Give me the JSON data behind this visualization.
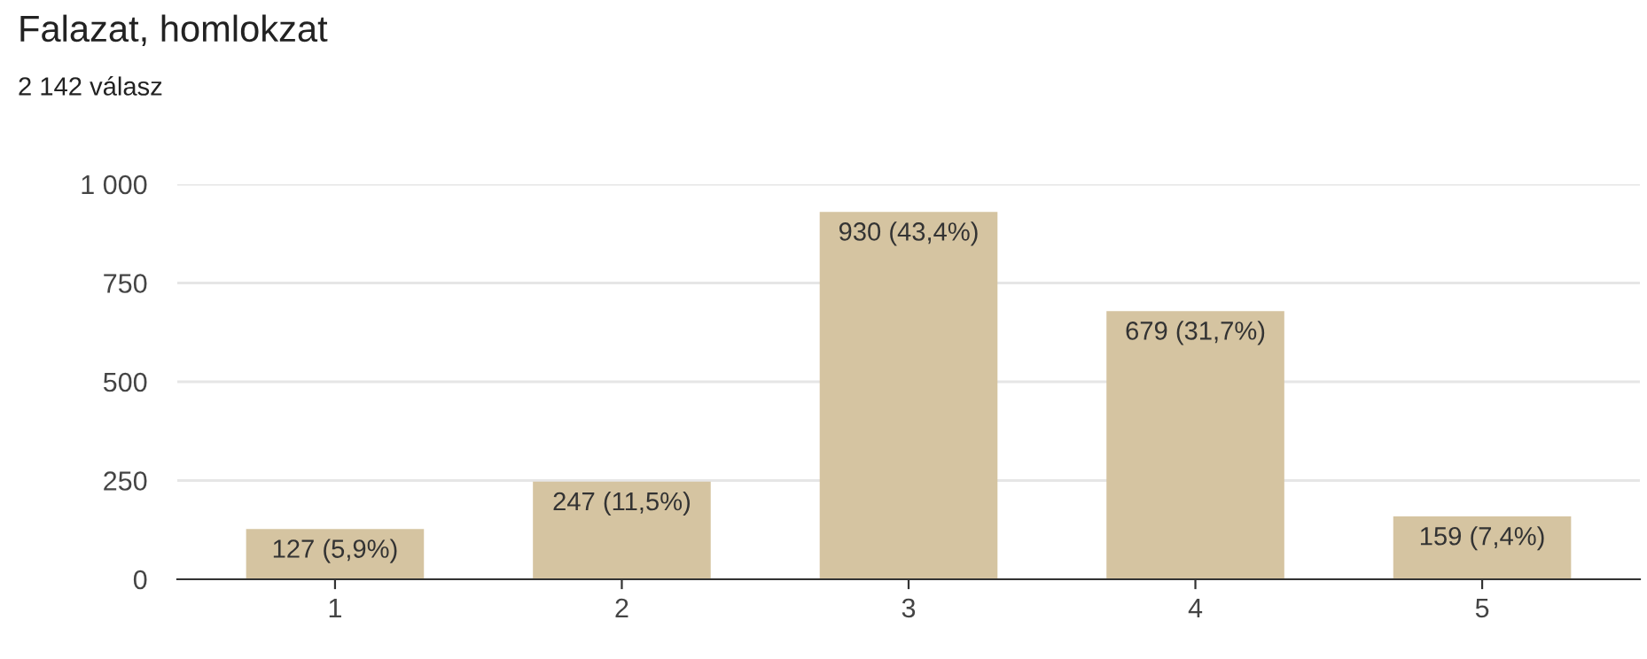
{
  "chart_data": {
    "type": "bar",
    "title": "Falazat, homlokzat",
    "subtitle": "2 142 válasz",
    "categories": [
      "1",
      "2",
      "3",
      "4",
      "5"
    ],
    "values": [
      127,
      247,
      930,
      679,
      159
    ],
    "value_labels": [
      "127 (5,9%)",
      "247 (11,5%)",
      "930 (43,4%)",
      "679 (31,7%)",
      "159 (7,4%)"
    ],
    "color": "#d5c4a1",
    "ylim": [
      0,
      1000
    ],
    "yticks": [
      0,
      250,
      500,
      750,
      {
        "value": 1000,
        "label": "1 000"
      }
    ],
    "grid": "y"
  }
}
